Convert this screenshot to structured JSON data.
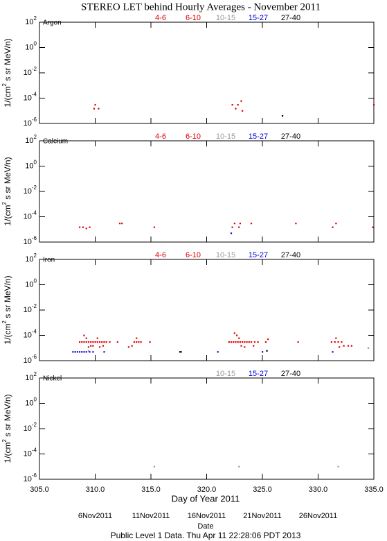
{
  "title": "STEREO LET behind Hourly Averages - November 2011",
  "xlabel": "Day of Year 2011",
  "date_label": "Date",
  "date_ticks": [
    {
      "value": 310,
      "label": "6Nov2011"
    },
    {
      "value": 315,
      "label": "11Nov2011"
    },
    {
      "value": 320,
      "label": "16Nov2011"
    },
    {
      "value": 325,
      "label": "21Nov2011"
    },
    {
      "value": 330,
      "label": "26Nov2011"
    }
  ],
  "footer": "Public Level 1 Data. Thu Apr 11 22:28:06 PDT 2013",
  "chart_data": [
    {
      "type": "scatter",
      "name": "Argon",
      "ylabel": "1/(cm^2 s sr MeV/n)",
      "log_y": true,
      "xlim": [
        305,
        335
      ],
      "xticks": [
        {
          "value": 305,
          "label": "305.0"
        },
        {
          "value": 310,
          "label": "310.0"
        },
        {
          "value": 315,
          "label": "315.0"
        },
        {
          "value": 320,
          "label": "320.0"
        },
        {
          "value": 325,
          "label": "325.0"
        },
        {
          "value": 330,
          "label": "330.0"
        },
        {
          "value": 335,
          "label": "335.0"
        }
      ],
      "ylim": [
        1e-06,
        100
      ],
      "yticks": [
        {
          "value": 100,
          "label": "10^2"
        },
        {
          "value": 1,
          "label": "10^0"
        },
        {
          "value": 0.01,
          "label": "10^-2"
        },
        {
          "value": 0.0001,
          "label": "10^-4"
        },
        {
          "value": 1e-06,
          "label": "10^-6"
        }
      ],
      "series": [
        {
          "name": "4-6",
          "color": "#e00000",
          "x": [
            310.0,
            322.3,
            323.1,
            335.0
          ],
          "values": [
            3e-05,
            3e-05,
            6e-05,
            3e-05
          ]
        },
        {
          "name": "6-10",
          "color": "#e00000",
          "x": [
            309.9,
            310.3,
            322.6,
            322.8,
            323.2
          ],
          "values": [
            1.5e-05,
            1.5e-05,
            1.5e-05,
            3e-05,
            1e-05
          ]
        },
        {
          "name": "10-15",
          "color": "#999999",
          "x": [],
          "values": []
        },
        {
          "name": "15-27",
          "color": "#0000dd",
          "x": [],
          "values": []
        },
        {
          "name": "27-40",
          "color": "#000000",
          "x": [
            326.8
          ],
          "values": [
            4e-06
          ]
        }
      ]
    },
    {
      "type": "scatter",
      "name": "Calcium",
      "ylabel": "1/(cm^2 s sr MeV/n)",
      "log_y": true,
      "xlim": [
        305,
        335
      ],
      "xticks": [
        {
          "value": 305,
          "label": "305.0"
        },
        {
          "value": 310,
          "label": "310.0"
        },
        {
          "value": 315,
          "label": "315.0"
        },
        {
          "value": 320,
          "label": "320.0"
        },
        {
          "value": 325,
          "label": "325.0"
        },
        {
          "value": 330,
          "label": "330.0"
        },
        {
          "value": 335,
          "label": "335.0"
        }
      ],
      "ylim": [
        1e-06,
        100
      ],
      "yticks": [
        {
          "value": 100,
          "label": "10^2"
        },
        {
          "value": 1,
          "label": "10^0"
        },
        {
          "value": 0.01,
          "label": "10^-2"
        },
        {
          "value": 0.0001,
          "label": "10^-4"
        },
        {
          "value": 1e-06,
          "label": "10^-6"
        }
      ],
      "series": [
        {
          "name": "4-6",
          "color": "#e00000",
          "x": [
            308.6,
            308.9,
            309.5,
            312.2,
            312.4,
            315.3,
            322.5,
            323.0,
            324.0,
            328.0,
            331.6
          ],
          "values": [
            1.5e-05,
            1.5e-05,
            1.5e-05,
            3e-05,
            3e-05,
            1.5e-05,
            3e-05,
            3e-05,
            3e-05,
            3e-05,
            3e-05
          ]
        },
        {
          "name": "6-10",
          "color": "#e00000",
          "x": [
            309.2,
            322.3,
            322.9,
            331.3,
            334.9
          ],
          "values": [
            1.2e-05,
            1.5e-05,
            1.5e-05,
            1.5e-05,
            1.5e-05
          ]
        },
        {
          "name": "10-15",
          "color": "#999999",
          "x": [],
          "values": []
        },
        {
          "name": "15-27",
          "color": "#0000dd",
          "x": [
            322.2
          ],
          "values": [
            5e-06
          ]
        },
        {
          "name": "27-40",
          "color": "#000000",
          "x": [],
          "values": []
        }
      ]
    },
    {
      "type": "scatter",
      "name": "Iron",
      "ylabel": "1/(cm^2 s sr MeV/n)",
      "log_y": true,
      "xlim": [
        305,
        335
      ],
      "xticks": [
        {
          "value": 305,
          "label": "305.0"
        },
        {
          "value": 310,
          "label": "310.0"
        },
        {
          "value": 315,
          "label": "315.0"
        },
        {
          "value": 320,
          "label": "320.0"
        },
        {
          "value": 325,
          "label": "325.0"
        },
        {
          "value": 330,
          "label": "330.0"
        },
        {
          "value": 335,
          "label": "335.0"
        }
      ],
      "ylim": [
        1e-06,
        100
      ],
      "yticks": [
        {
          "value": 100,
          "label": "10^2"
        },
        {
          "value": 1,
          "label": "10^0"
        },
        {
          "value": 0.01,
          "label": "10^-2"
        },
        {
          "value": 0.0001,
          "label": "10^-4"
        },
        {
          "value": 1e-06,
          "label": "10^-6"
        }
      ],
      "series": [
        {
          "name": "4-6",
          "color": "#e00000",
          "x": [
            308.6,
            308.8,
            309.0,
            309.2,
            309.4,
            309.6,
            309.8,
            310.0,
            310.2,
            310.4,
            310.6,
            310.8,
            311.0,
            311.3,
            312.0,
            313.5,
            313.7,
            313.9,
            314.1,
            314.9,
            322.0,
            322.2,
            322.4,
            322.6,
            322.8,
            323.0,
            323.2,
            323.4,
            323.6,
            323.8,
            324.0,
            324.3,
            324.6,
            325.3,
            328.2,
            331.2,
            331.5,
            331.8,
            332.1
          ],
          "values": [
            3e-05,
            3e-05,
            3e-05,
            3e-05,
            3e-05,
            3e-05,
            3e-05,
            3e-05,
            3e-05,
            3e-05,
            3e-05,
            3e-05,
            3e-05,
            3e-05,
            3e-05,
            3e-05,
            3e-05,
            3e-05,
            3e-05,
            3e-05,
            3e-05,
            3e-05,
            3e-05,
            3e-05,
            3e-05,
            3e-05,
            3e-05,
            3e-05,
            3e-05,
            3e-05,
            3e-05,
            3e-05,
            3e-05,
            3e-05,
            3e-05,
            3e-05,
            3e-05,
            3e-05,
            3e-05
          ]
        },
        {
          "name": "6-10",
          "color": "#e00000",
          "x": [
            309.0,
            309.2,
            309.4,
            309.6,
            309.8,
            310.2,
            310.4,
            310.7,
            313.0,
            313.3,
            313.7,
            322.5,
            322.7,
            322.9,
            323.1,
            323.4,
            324.2,
            325.5,
            331.6,
            331.9,
            332.3,
            332.7,
            333.0
          ],
          "values": [
            0.0001,
            6e-05,
            1.2e-05,
            1.5e-05,
            1.5e-05,
            6e-05,
            1.2e-05,
            1.5e-05,
            1.2e-05,
            1.5e-05,
            6e-05,
            0.00015,
            0.0001,
            6e-05,
            1.5e-05,
            1.2e-05,
            1.5e-05,
            5e-05,
            6e-05,
            1.2e-05,
            1.5e-05,
            1.5e-05,
            1.5e-05
          ]
        },
        {
          "name": "10-15",
          "color": "#999999",
          "x": [
            309.4,
            334.5
          ],
          "values": [
            6e-06,
            1e-05
          ]
        },
        {
          "name": "15-27",
          "color": "#0000dd",
          "x": [
            308.0,
            308.2,
            308.4,
            308.6,
            308.8,
            309.0,
            309.2,
            309.5,
            309.8,
            310.8,
            321.0,
            325.0,
            331.3
          ],
          "values": [
            5e-06,
            5e-06,
            5e-06,
            5e-06,
            5e-06,
            5e-06,
            5e-06,
            5e-06,
            5e-06,
            5e-06,
            5e-06,
            5e-06,
            5e-06
          ]
        },
        {
          "name": "27-40",
          "color": "#000000",
          "x": [
            317.6,
            317.7,
            325.4
          ],
          "values": [
            5e-06,
            5e-06,
            6e-06
          ]
        }
      ]
    },
    {
      "type": "scatter",
      "name": "Nickel",
      "ylabel": "1/(cm^2 s sr MeV/n)",
      "log_y": true,
      "xlim": [
        305,
        335
      ],
      "xticks": [
        {
          "value": 305,
          "label": "305.0"
        },
        {
          "value": 310,
          "label": "310.0"
        },
        {
          "value": 315,
          "label": "315.0"
        },
        {
          "value": 320,
          "label": "320.0"
        },
        {
          "value": 325,
          "label": "325.0"
        },
        {
          "value": 330,
          "label": "330.0"
        },
        {
          "value": 335,
          "label": "335.0"
        }
      ],
      "ylim": [
        1e-06,
        100
      ],
      "yticks": [
        {
          "value": 100,
          "label": "10^2"
        },
        {
          "value": 1,
          "label": "10^0"
        },
        {
          "value": 0.01,
          "label": "10^-2"
        },
        {
          "value": 0.0001,
          "label": "10^-4"
        },
        {
          "value": 1e-06,
          "label": "10^-6"
        }
      ],
      "series": [
        {
          "name": "10-15",
          "color": "#999999",
          "x": [
            315.3,
            322.9,
            331.8
          ],
          "values": [
            1e-05,
            1e-05,
            1e-05
          ]
        },
        {
          "name": "15-27",
          "color": "#0000dd",
          "x": [],
          "values": []
        },
        {
          "name": "27-40",
          "color": "#000000",
          "x": [],
          "values": []
        }
      ]
    }
  ]
}
